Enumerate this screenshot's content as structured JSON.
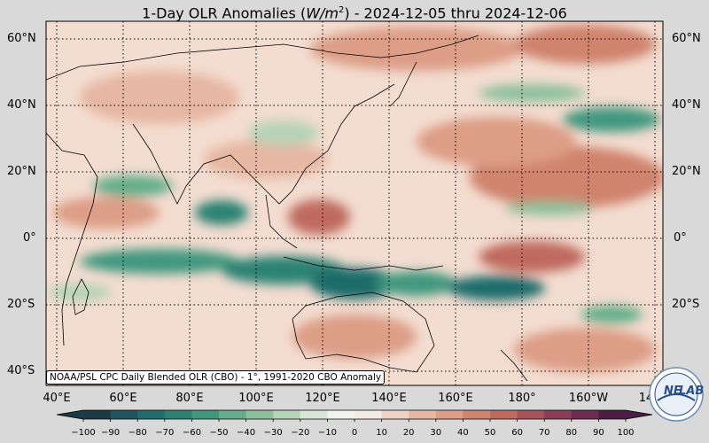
{
  "title": {
    "prefix": "1-Day OLR Anomalies (",
    "unit_base": "W/m",
    "unit_exp": "2",
    "suffix": ") - 2024-12-05 thru 2024-12-06"
  },
  "lat_labels": [
    "60°N",
    "40°N",
    "20°N",
    "0°",
    "20°S",
    "40°S"
  ],
  "lon_labels": [
    "40°E",
    "60°E",
    "80°E",
    "100°E",
    "120°E",
    "140°E",
    "160°E",
    "180°",
    "160°W",
    "14"
  ],
  "source_note": "NOAA/PSL CPC Daily Blended OLR (CBO) - 1°, 1991-2020 CBO Anomaly",
  "colorbar": {
    "ticks": [
      "−100",
      "−90",
      "−80",
      "−70",
      "−60",
      "−50",
      "−40",
      "−30",
      "−20",
      "−10",
      "0",
      "10",
      "20",
      "30",
      "40",
      "50",
      "60",
      "70",
      "80",
      "90",
      "100"
    ],
    "colors": [
      "#1b3b44",
      "#1f5560",
      "#1e6c6c",
      "#2b8273",
      "#3f987e",
      "#63ad8a",
      "#8cc09c",
      "#b5d3b7",
      "#d8e6d6",
      "#f2f2ee",
      "#f6ebe3",
      "#efd2c3",
      "#e6b7a2",
      "#dd9d86",
      "#d0836d",
      "#c06a5f",
      "#a9525a",
      "#8d3d58",
      "#6f2b52",
      "#4d1c42"
    ]
  },
  "logo": {
    "text_main": "NE",
    "text_sub": "LAB",
    "icon": "noaa-psl-logo"
  }
}
